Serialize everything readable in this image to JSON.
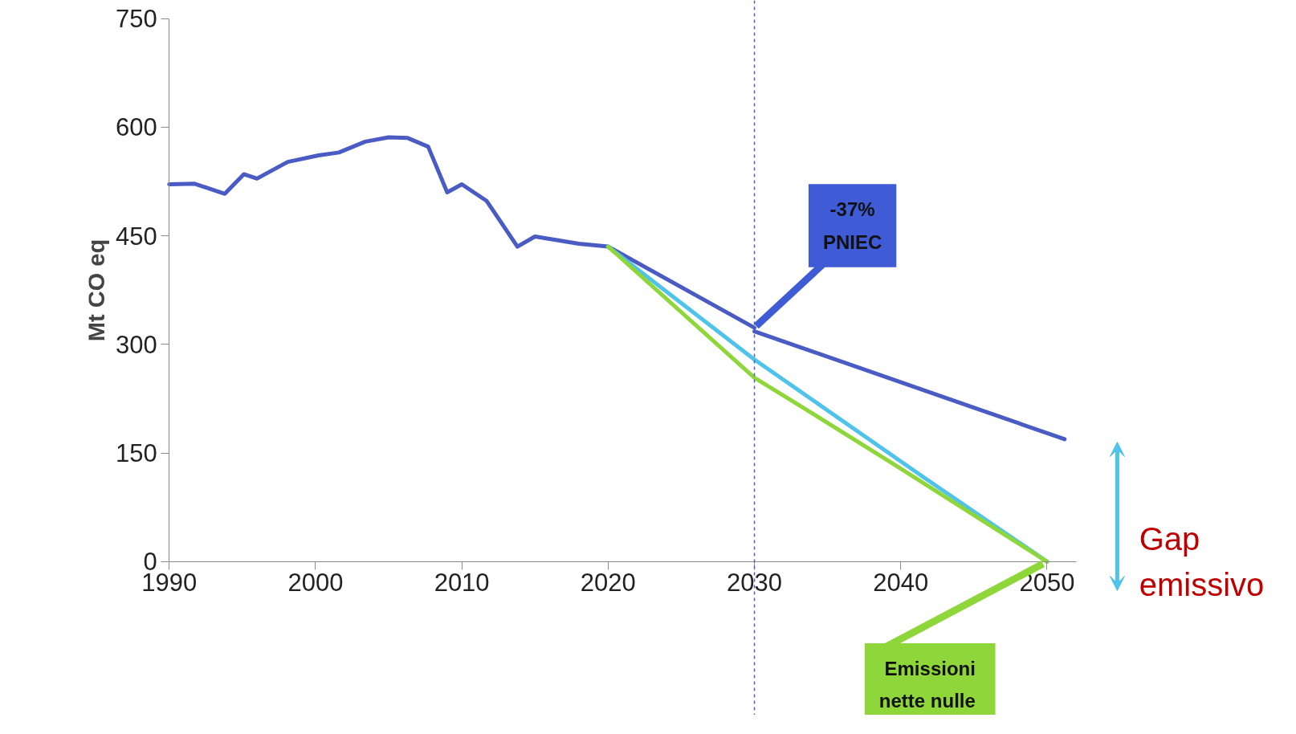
{
  "chart_data": {
    "type": "line",
    "ylabel": "Mt CO eq",
    "xlim": [
      1990,
      2052
    ],
    "ylim": [
      0,
      750
    ],
    "xticks": [
      1990,
      2000,
      2010,
      2020,
      2030,
      2040,
      {
        "value": 2050,
        "label": "2050"
      }
    ],
    "yticks": [
      0,
      150,
      300,
      450,
      600,
      750
    ],
    "grid": false,
    "series": [
      {
        "color": "#4a5bc4",
        "x": [
          1990,
          1991.7,
          1993.8,
          1995.1,
          1996,
          1998.1,
          2000.2,
          2001.6,
          2003.4,
          2005,
          2006.3,
          2007.7,
          2009,
          2010,
          2011.7,
          2013.8,
          2015,
          2018,
          2020,
          2030
        ],
        "values": [
          521,
          522,
          508,
          535,
          529,
          552,
          561,
          565,
          580,
          586,
          585,
          573,
          510,
          521,
          498,
          435,
          449,
          439,
          435,
          323
        ]
      },
      {
        "color": "#4a5bc4",
        "x": [
          2030,
          2051.2
        ],
        "values": [
          318,
          169
        ]
      },
      {
        "color": "#4fc3ea",
        "x": [
          2020,
          2030,
          2041.6,
          2050
        ],
        "values": [
          435,
          279,
          116,
          0
        ]
      },
      {
        "color": "#8fd63a",
        "x": [
          2020,
          2030,
          2032.9,
          2039.4,
          2050
        ],
        "values": [
          435,
          254,
          218,
          136,
          0
        ]
      }
    ],
    "ref_lines": [
      {
        "axis": "x",
        "value": 2030,
        "color": "#4a5bc4",
        "line_style": "dashed"
      }
    ],
    "annotations": [
      {
        "text": "-37%\nPNIEC",
        "x": 2030,
        "y": 323
      },
      {
        "text": "Emissioni\nnette  nulle",
        "x": 2050,
        "y": 0
      },
      "Gap emissivo"
    ]
  }
}
